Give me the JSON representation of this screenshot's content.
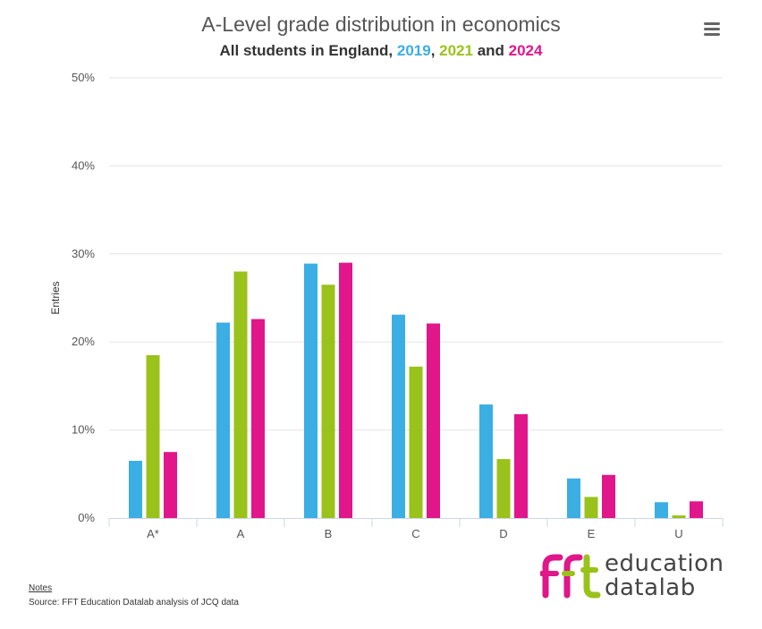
{
  "header": {
    "title": "A-Level grade distribution in economics",
    "subtitle_prefix": "All students in England, ",
    "subtitle_year1": "2019",
    "subtitle_sep1": ", ",
    "subtitle_year2": "2021",
    "subtitle_sep2": " and ",
    "subtitle_year3": "2024"
  },
  "footer": {
    "notes_label": "Notes",
    "source": "Source: FFT Education Datalab analysis of JCQ data"
  },
  "logo": {
    "line1": "education",
    "line2": "datalab"
  },
  "colors": {
    "y2019": "#3BAEE3",
    "y2021": "#99C21B",
    "y2024": "#E0168A"
  },
  "icons": {
    "menu": "hamburger-menu-icon",
    "logo": "fft-logo-icon"
  },
  "chart_data": {
    "type": "bar",
    "title": "A-Level grade distribution in economics",
    "subtitle": "All students in England, 2019, 2021 and 2024",
    "categories": [
      "A*",
      "A",
      "B",
      "C",
      "D",
      "E",
      "U"
    ],
    "series": [
      {
        "name": "2019",
        "color": "#3BAEE3",
        "values": [
          6.5,
          22.2,
          28.9,
          23.1,
          12.9,
          4.5,
          1.8
        ]
      },
      {
        "name": "2021",
        "color": "#99C21B",
        "values": [
          18.5,
          28.0,
          26.5,
          17.2,
          6.7,
          2.4,
          0.3
        ]
      },
      {
        "name": "2024",
        "color": "#E0168A",
        "values": [
          7.5,
          22.6,
          29.0,
          22.1,
          11.8,
          4.9,
          1.9
        ]
      }
    ],
    "ylabel": "Entries",
    "xlabel": "",
    "ylim": [
      0,
      50
    ],
    "yticks": [
      "0%",
      "10%",
      "20%",
      "30%",
      "40%",
      "50%"
    ],
    "ytick_values": [
      0,
      10,
      20,
      30,
      40,
      50
    ],
    "grid": true,
    "legend": "none"
  }
}
